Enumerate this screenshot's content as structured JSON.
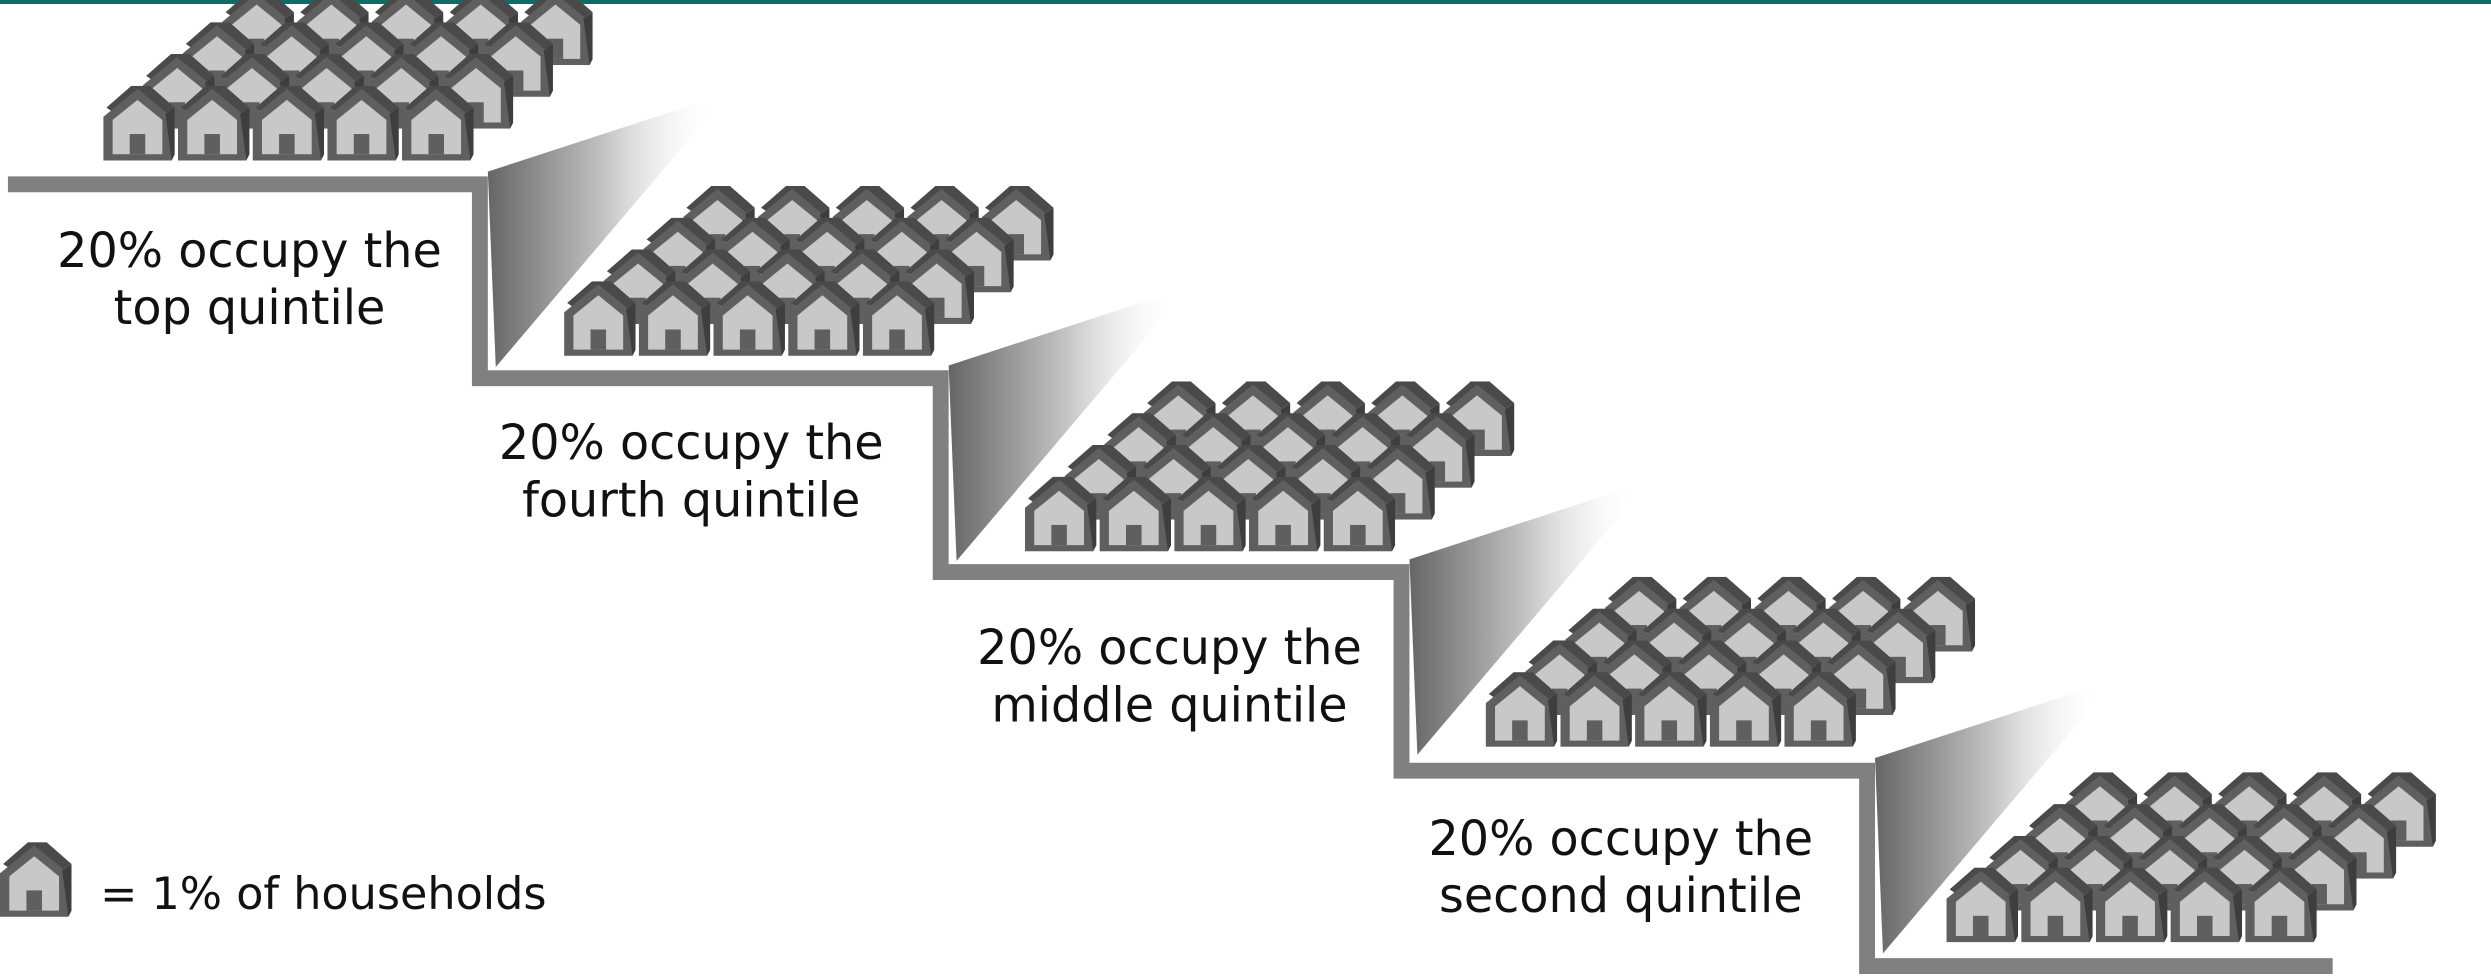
{
  "steps": [
    {
      "lines": [
        "20% occupy the",
        "top quintile"
      ]
    },
    {
      "lines": [
        "20% occupy the",
        "fourth quintile"
      ]
    },
    {
      "lines": [
        "20% occupy the",
        "middle quintile"
      ]
    },
    {
      "lines": [
        "20% occupy the",
        "second quintile"
      ]
    }
  ],
  "legend": {
    "text": "= 1% of households"
  }
}
